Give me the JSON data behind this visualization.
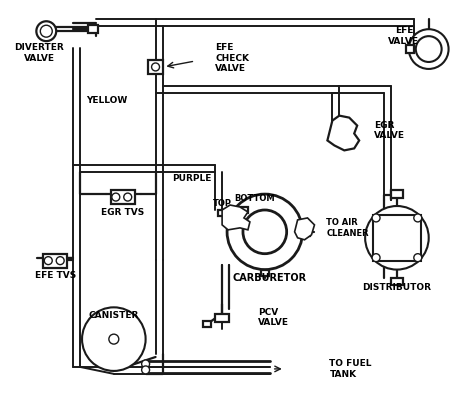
{
  "bg_color": "#ffffff",
  "line_color": "#1a1a1a",
  "text_color": "#000000",
  "figsize": [
    4.74,
    4.16
  ],
  "dpi": 100,
  "lw": 1.6,
  "labels": {
    "diverter_valve": "DIVERTER\nVALVE",
    "efe_check_valve": "EFE\nCHECK\nVALVE",
    "efe_valve": "EFE\nVALVE",
    "egr_valve": "EGR\nVALVE",
    "yellow": "YELLOW",
    "purple": "PURPLE",
    "egr_tvs": "EGR TVS",
    "efe_tvs": "EFE TVS",
    "top": "TOP",
    "bottom": "BOTTOM",
    "to_air_cleaner": "TO AIR\nCLEANER",
    "carburetor": "CARBURETOR",
    "distributor": "DISTRIBUTOR",
    "canister": "CANISTER",
    "pcv_valve": "PCV\nVALVE",
    "to_fuel_tank": "TO FUEL\nTANK"
  }
}
